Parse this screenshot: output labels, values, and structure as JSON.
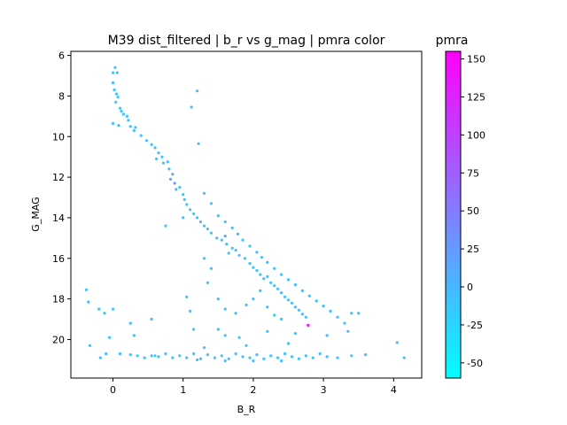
{
  "chart_data": {
    "type": "scatter",
    "title": "M39 dist_filtered | b_r vs g_mag | pmra color",
    "xlabel": "B_R",
    "ylabel": "G_MAG",
    "xlim": [
      -0.6,
      4.4
    ],
    "ylim": [
      21.9,
      5.8
    ],
    "y_inverted": true,
    "xticks": [
      0,
      1,
      2,
      3,
      4
    ],
    "yticks": [
      6,
      8,
      10,
      12,
      14,
      16,
      18,
      20
    ],
    "grid": false,
    "colorbar": {
      "label": "pmra",
      "range": [
        -60,
        155
      ],
      "ticks": [
        -50,
        -25,
        0,
        25,
        50,
        75,
        100,
        125,
        150
      ],
      "colormap": "cool",
      "color_low": "#00ffff",
      "color_high": "#ff00ff"
    },
    "series": [
      {
        "color_variable": "pmra",
        "points": [
          [
            -0.38,
            17.55,
            -5
          ],
          [
            -0.35,
            18.15,
            -5
          ],
          [
            -0.33,
            20.3,
            -5
          ],
          [
            -0.2,
            18.5,
            -5
          ],
          [
            -0.18,
            20.9,
            -5
          ],
          [
            -0.12,
            18.7,
            -5
          ],
          [
            -0.1,
            20.7,
            -5
          ],
          [
            -0.05,
            19.9,
            -5
          ],
          [
            0.0,
            6.85,
            -8
          ],
          [
            0.03,
            6.6,
            -8
          ],
          [
            0.06,
            6.85,
            -8
          ],
          [
            0.0,
            7.35,
            -8
          ],
          [
            0.02,
            7.7,
            -8
          ],
          [
            0.05,
            7.9,
            -8
          ],
          [
            0.04,
            8.3,
            -8
          ],
          [
            0.07,
            8.05,
            -8
          ],
          [
            0.1,
            8.6,
            -8
          ],
          [
            0.12,
            8.75,
            -8
          ],
          [
            0.15,
            8.9,
            -8
          ],
          [
            0.2,
            9.0,
            -8
          ],
          [
            0.0,
            9.35,
            -8
          ],
          [
            0.08,
            9.45,
            -8
          ],
          [
            0.22,
            9.2,
            -8
          ],
          [
            0.25,
            9.5,
            -8
          ],
          [
            0.3,
            9.7,
            -8
          ],
          [
            0.32,
            9.55,
            -8
          ],
          [
            0.4,
            9.95,
            -8
          ],
          [
            0.48,
            10.2,
            -8
          ],
          [
            0.55,
            10.4,
            -8
          ],
          [
            0.6,
            10.55,
            -8
          ],
          [
            0.65,
            10.8,
            -8
          ],
          [
            0.62,
            11.1,
            -8
          ],
          [
            0.7,
            11.0,
            -8
          ],
          [
            0.72,
            11.3,
            -8
          ],
          [
            0.78,
            11.25,
            -8
          ],
          [
            0.8,
            11.6,
            -8
          ],
          [
            0.85,
            11.85,
            5
          ],
          [
            0.82,
            12.1,
            10
          ],
          [
            0.88,
            12.3,
            20
          ],
          [
            0.9,
            12.6,
            5
          ],
          [
            0.95,
            12.5,
            -8
          ],
          [
            1.0,
            12.85,
            -8
          ],
          [
            1.02,
            13.1,
            -8
          ],
          [
            1.05,
            13.35,
            -8
          ],
          [
            1.1,
            13.6,
            -8
          ],
          [
            1.15,
            13.8,
            -8
          ],
          [
            1.2,
            14.0,
            -8
          ],
          [
            1.25,
            14.2,
            -8
          ],
          [
            1.3,
            14.4,
            -8
          ],
          [
            1.35,
            14.55,
            -8
          ],
          [
            1.4,
            14.75,
            -8
          ],
          [
            1.48,
            15.0,
            -8
          ],
          [
            1.55,
            15.1,
            -8
          ],
          [
            1.6,
            14.9,
            10
          ],
          [
            1.62,
            15.3,
            -8
          ],
          [
            1.7,
            15.5,
            -8
          ],
          [
            1.75,
            15.6,
            -8
          ],
          [
            1.8,
            15.85,
            -8
          ],
          [
            1.88,
            16.0,
            -8
          ],
          [
            1.95,
            16.25,
            -8
          ],
          [
            2.0,
            16.45,
            -8
          ],
          [
            2.05,
            16.6,
            -8
          ],
          [
            2.1,
            16.8,
            -8
          ],
          [
            2.15,
            17.0,
            -8
          ],
          [
            2.2,
            16.9,
            -8
          ],
          [
            2.25,
            17.2,
            -8
          ],
          [
            2.3,
            17.35,
            -8
          ],
          [
            2.35,
            17.5,
            -8
          ],
          [
            2.4,
            17.7,
            -8
          ],
          [
            2.45,
            17.9,
            -8
          ],
          [
            2.5,
            18.05,
            -8
          ],
          [
            2.55,
            18.2,
            -8
          ],
          [
            2.6,
            18.4,
            -8
          ],
          [
            2.65,
            18.55,
            -8
          ],
          [
            2.7,
            18.75,
            -8
          ],
          [
            2.75,
            18.9,
            -8
          ],
          [
            1.2,
            7.75,
            -8
          ],
          [
            1.12,
            8.55,
            -8
          ],
          [
            1.22,
            10.35,
            -8
          ],
          [
            1.65,
            15.75,
            -8
          ],
          [
            1.3,
            12.8,
            -8
          ],
          [
            1.4,
            13.3,
            -8
          ],
          [
            1.5,
            13.9,
            -8
          ],
          [
            1.6,
            14.2,
            -8
          ],
          [
            1.7,
            14.5,
            -8
          ],
          [
            1.78,
            14.8,
            8
          ],
          [
            1.85,
            15.1,
            -8
          ],
          [
            1.95,
            15.4,
            -8
          ],
          [
            2.05,
            15.7,
            -8
          ],
          [
            2.12,
            15.95,
            -8
          ],
          [
            2.2,
            16.2,
            -8
          ],
          [
            2.3,
            16.5,
            -8
          ],
          [
            2.4,
            16.8,
            -8
          ],
          [
            2.5,
            17.05,
            -8
          ],
          [
            2.6,
            17.3,
            -8
          ],
          [
            2.7,
            17.6,
            -8
          ],
          [
            2.8,
            17.85,
            -8
          ],
          [
            2.9,
            18.1,
            -8
          ],
          [
            3.0,
            18.35,
            -8
          ],
          [
            3.1,
            18.6,
            -8
          ],
          [
            3.2,
            18.9,
            -8
          ],
          [
            3.3,
            19.2,
            -8
          ],
          [
            3.4,
            18.7,
            -8
          ],
          [
            3.5,
            18.7,
            -8
          ],
          [
            3.35,
            19.6,
            -8
          ],
          [
            2.78,
            19.3,
            150
          ],
          [
            1.0,
            14.0,
            -8
          ],
          [
            0.75,
            14.4,
            -8
          ],
          [
            1.3,
            16.0,
            -8
          ],
          [
            1.4,
            16.5,
            -8
          ],
          [
            1.35,
            17.2,
            -8
          ],
          [
            1.5,
            18.0,
            -8
          ],
          [
            1.6,
            18.5,
            -8
          ],
          [
            1.75,
            18.7,
            -8
          ],
          [
            1.9,
            18.3,
            -8
          ],
          [
            2.0,
            18.0,
            -8
          ],
          [
            2.1,
            17.6,
            -8
          ],
          [
            2.2,
            18.4,
            -8
          ],
          [
            2.3,
            18.8,
            -8
          ],
          [
            2.4,
            19.0,
            -8
          ],
          [
            1.1,
            18.6,
            -8
          ],
          [
            1.05,
            17.9,
            -8
          ],
          [
            1.15,
            19.5,
            -8
          ],
          [
            0.0,
            18.5,
            -8
          ],
          [
            0.55,
            19.0,
            -8
          ],
          [
            0.25,
            19.2,
            -8
          ],
          [
            0.3,
            19.8,
            -8
          ],
          [
            1.6,
            19.8,
            -8
          ],
          [
            0.1,
            20.7,
            -8
          ],
          [
            0.25,
            20.75,
            -8
          ],
          [
            0.35,
            20.8,
            -8
          ],
          [
            0.45,
            20.9,
            -8
          ],
          [
            0.55,
            20.8,
            -8
          ],
          [
            0.65,
            20.85,
            -8
          ],
          [
            0.75,
            20.7,
            -8
          ],
          [
            0.85,
            20.9,
            -8
          ],
          [
            0.95,
            20.8,
            -8
          ],
          [
            1.05,
            20.9,
            -8
          ],
          [
            1.15,
            20.7,
            -8
          ],
          [
            1.25,
            20.95,
            -8
          ],
          [
            1.35,
            20.75,
            -8
          ],
          [
            1.45,
            20.9,
            -8
          ],
          [
            1.55,
            20.8,
            -8
          ],
          [
            1.65,
            20.95,
            -8
          ],
          [
            1.75,
            20.7,
            -8
          ],
          [
            1.85,
            20.85,
            -8
          ],
          [
            1.95,
            20.9,
            -8
          ],
          [
            2.05,
            20.75,
            -8
          ],
          [
            2.15,
            20.95,
            -8
          ],
          [
            2.25,
            20.8,
            -8
          ],
          [
            2.35,
            20.9,
            -8
          ],
          [
            2.45,
            20.7,
            -8
          ],
          [
            2.55,
            20.85,
            -8
          ],
          [
            2.65,
            20.95,
            -8
          ],
          [
            2.75,
            20.8,
            -8
          ],
          [
            2.85,
            20.9,
            -8
          ],
          [
            2.95,
            20.7,
            -8
          ],
          [
            3.05,
            20.85,
            -8
          ],
          [
            3.2,
            20.9,
            -8
          ],
          [
            3.4,
            20.8,
            -8
          ],
          [
            3.6,
            20.75,
            -8
          ],
          [
            4.05,
            20.15,
            -8
          ],
          [
            4.15,
            20.9,
            -8
          ],
          [
            3.05,
            19.8,
            -8
          ],
          [
            1.5,
            19.5,
            -8
          ],
          [
            1.8,
            19.9,
            -8
          ],
          [
            2.2,
            19.6,
            -8
          ],
          [
            2.6,
            19.7,
            -8
          ],
          [
            1.3,
            20.4,
            -8
          ],
          [
            1.9,
            20.3,
            -8
          ],
          [
            2.5,
            20.2,
            -8
          ],
          [
            1.2,
            21.0,
            -8
          ],
          [
            1.6,
            21.05,
            -8
          ],
          [
            2.0,
            21.05,
            -8
          ],
          [
            2.4,
            21.05,
            -8
          ],
          [
            0.6,
            20.8,
            -8
          ]
        ]
      }
    ]
  }
}
